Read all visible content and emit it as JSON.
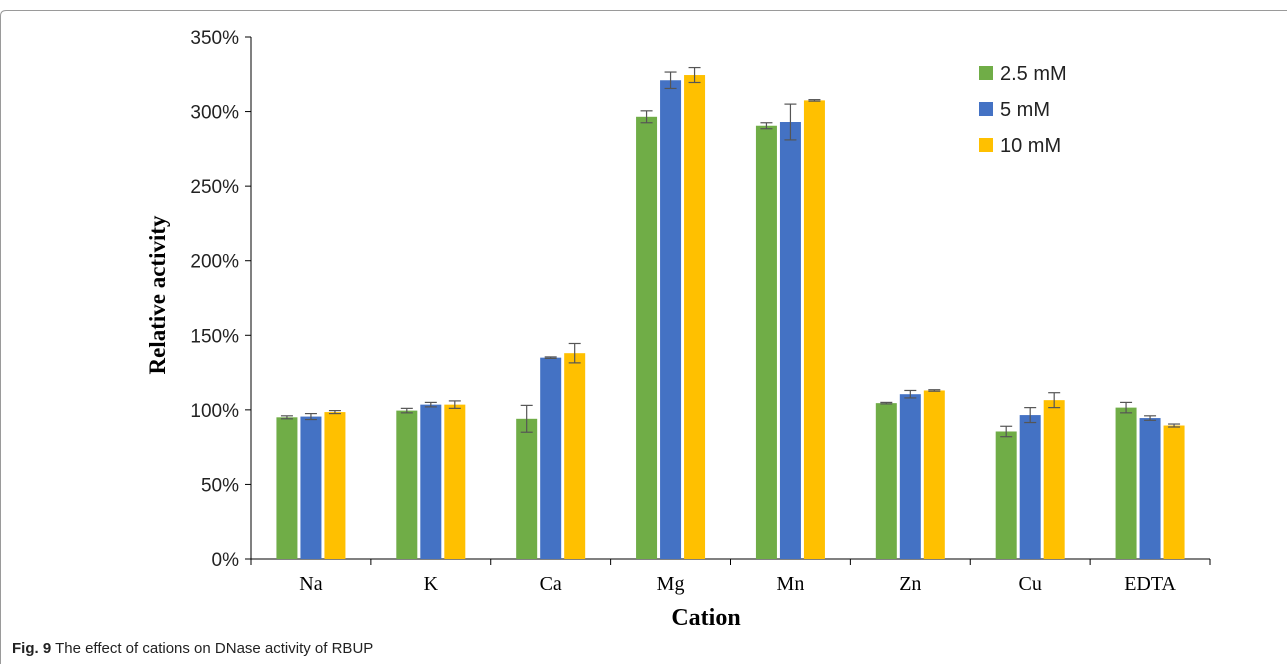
{
  "caption": {
    "label": "Fig. 9",
    "text": "The effect of cations on DNase activity of RBUP"
  },
  "chart_data": {
    "type": "bar",
    "title": "",
    "xlabel": "Cation",
    "ylabel": "Relative activity",
    "ylim": [
      0,
      350
    ],
    "y_ticks": [
      "0%",
      "50%",
      "100%",
      "150%",
      "200%",
      "250%",
      "300%",
      "350%"
    ],
    "y_tick_values": [
      0,
      50,
      100,
      150,
      200,
      250,
      300,
      350
    ],
    "categories": [
      "Na",
      "K",
      "Ca",
      "Mg",
      "Mn",
      "Zn",
      "Cu",
      "EDTA"
    ],
    "legend_position": "top-right",
    "grid": false,
    "series": [
      {
        "name": "2.5 mM",
        "color": "#70ad47",
        "values": [
          95,
          99.5,
          94,
          296.5,
          290.5,
          104.5,
          85.5,
          101.5
        ],
        "errors": [
          1,
          1.5,
          9,
          4,
          2,
          0.5,
          3.5,
          3.5
        ]
      },
      {
        "name": "5 mM",
        "color": "#4472c4",
        "values": [
          95.5,
          103.5,
          135,
          321,
          293,
          110.5,
          96.5,
          94.5
        ],
        "errors": [
          2,
          1.5,
          0.5,
          5.5,
          12,
          2.5,
          5,
          1.5
        ]
      },
      {
        "name": "10 mM",
        "color": "#ffc000",
        "values": [
          98.5,
          103.5,
          138,
          324.5,
          307.5,
          113,
          106.5,
          89.5
        ],
        "errors": [
          1,
          2.5,
          6.5,
          5,
          0.5,
          0.5,
          5,
          1
        ]
      }
    ]
  }
}
